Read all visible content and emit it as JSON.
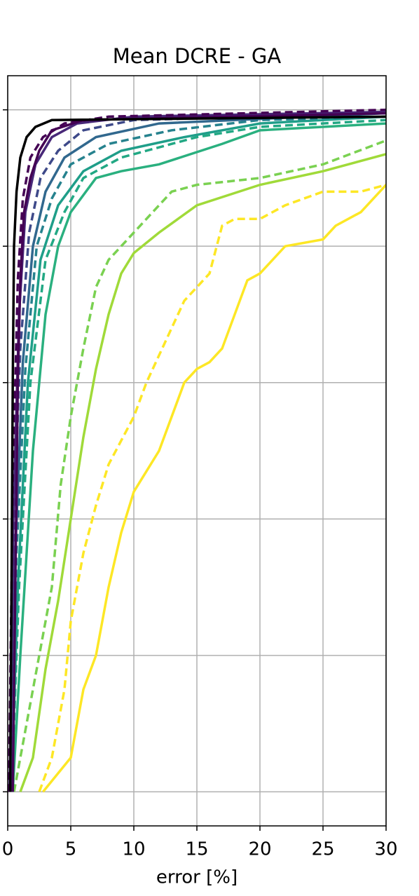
{
  "chart_data": {
    "type": "line",
    "title": "Mean DCRE - GA",
    "xlabel": "error [%]",
    "xlim": [
      0,
      30
    ],
    "xticks": [
      0,
      5,
      10,
      15,
      20,
      25,
      30
    ],
    "ylim": [
      -0.05,
      1.05
    ],
    "yticks": [
      0,
      0.2,
      0.4,
      0.6,
      0.8,
      1.0
    ],
    "grid": true,
    "series": [
      {
        "color": "#fde725",
        "dashed": false,
        "x": [
          2.8,
          5,
          6,
          7,
          8,
          9,
          10,
          11,
          12,
          13,
          14,
          15,
          16,
          17,
          18,
          19,
          20,
          22,
          25,
          26,
          28,
          30
        ],
        "values": [
          0,
          0.05,
          0.15,
          0.2,
          0.3,
          0.38,
          0.44,
          0.47,
          0.5,
          0.55,
          0.6,
          0.62,
          0.63,
          0.65,
          0.7,
          0.75,
          0.76,
          0.8,
          0.81,
          0.83,
          0.85,
          0.89
        ]
      },
      {
        "color": "#fde725",
        "dashed": true,
        "x": [
          2.5,
          3.5,
          4.5,
          5,
          6,
          7,
          8,
          10,
          11,
          12,
          13,
          14,
          16,
          17,
          18,
          20,
          22,
          25,
          28,
          30
        ],
        "values": [
          0,
          0.05,
          0.15,
          0.25,
          0.35,
          0.42,
          0.48,
          0.55,
          0.6,
          0.64,
          0.68,
          0.72,
          0.76,
          0.83,
          0.84,
          0.84,
          0.86,
          0.88,
          0.88,
          0.89
        ]
      },
      {
        "color": "#a0da39",
        "dashed": false,
        "x": [
          1,
          2,
          3,
          4,
          5,
          6,
          7,
          8,
          9,
          10,
          12,
          15,
          20,
          25,
          30
        ],
        "values": [
          0,
          0.05,
          0.18,
          0.28,
          0.4,
          0.52,
          0.62,
          0.7,
          0.76,
          0.79,
          0.82,
          0.86,
          0.89,
          0.91,
          0.935
        ]
      },
      {
        "color": "#7ad151",
        "dashed": true,
        "x": [
          0.5,
          1.5,
          2.5,
          3.5,
          4.2,
          5,
          6,
          7,
          8,
          10,
          13,
          15,
          20,
          25,
          30
        ],
        "values": [
          0,
          0.1,
          0.2,
          0.3,
          0.45,
          0.55,
          0.65,
          0.74,
          0.78,
          0.82,
          0.88,
          0.89,
          0.9,
          0.92,
          0.955
        ]
      },
      {
        "color": "#2ab07f",
        "dashed": false,
        "x": [
          0.4,
          1,
          2,
          3,
          4,
          5,
          7,
          9,
          12,
          17,
          20,
          30
        ],
        "values": [
          0,
          0.2,
          0.5,
          0.7,
          0.8,
          0.85,
          0.9,
          0.91,
          0.92,
          0.95,
          0.97,
          0.98
        ]
      },
      {
        "color": "#22a884",
        "dashed": true,
        "x": [
          0.3,
          0.9,
          1.8,
          3,
          4.5,
          6,
          9,
          15,
          20,
          30
        ],
        "values": [
          0,
          0.3,
          0.6,
          0.78,
          0.85,
          0.9,
          0.93,
          0.96,
          0.975,
          0.985
        ]
      },
      {
        "color": "#1f9e89",
        "dashed": false,
        "x": [
          0.3,
          0.8,
          1.6,
          2.6,
          4,
          6,
          9,
          14,
          20,
          30
        ],
        "values": [
          0,
          0.3,
          0.6,
          0.78,
          0.86,
          0.91,
          0.94,
          0.96,
          0.98,
          0.99
        ]
      },
      {
        "color": "#26828e",
        "dashed": true,
        "x": [
          0.25,
          0.7,
          1.4,
          2.3,
          3.5,
          5,
          8,
          13,
          20,
          30
        ],
        "values": [
          0,
          0.35,
          0.62,
          0.8,
          0.87,
          0.92,
          0.95,
          0.97,
          0.985,
          0.99
        ]
      },
      {
        "color": "#31688e",
        "dashed": false,
        "x": [
          0.2,
          0.6,
          1.2,
          2,
          3,
          4.5,
          7,
          12,
          30
        ],
        "values": [
          0,
          0.35,
          0.63,
          0.8,
          0.88,
          0.93,
          0.96,
          0.98,
          0.995
        ]
      },
      {
        "color": "#3e4989",
        "dashed": true,
        "x": [
          0.2,
          0.5,
          1,
          1.7,
          2.6,
          4,
          6,
          10,
          30
        ],
        "values": [
          0,
          0.4,
          0.65,
          0.82,
          0.9,
          0.94,
          0.97,
          0.985,
          0.995
        ]
      },
      {
        "color": "#482878",
        "dashed": false,
        "x": [
          0.15,
          0.45,
          0.9,
          1.4,
          2.2,
          3.5,
          5.5,
          10,
          30
        ],
        "values": [
          0,
          0.4,
          0.7,
          0.85,
          0.92,
          0.96,
          0.98,
          0.99,
          0.997
        ]
      },
      {
        "color": "#440154",
        "dashed": true,
        "x": [
          0.1,
          0.4,
          0.8,
          1.2,
          1.8,
          2.8,
          4.5,
          8,
          30
        ],
        "values": [
          0,
          0.45,
          0.75,
          0.87,
          0.93,
          0.96,
          0.98,
          0.99,
          1.0
        ]
      },
      {
        "color": "#440154",
        "dashed": false,
        "x": [
          0.4,
          0.6,
          0.8,
          1.0,
          1.3,
          1.8,
          2.5,
          3.5,
          6,
          30
        ],
        "values": [
          0,
          0.3,
          0.6,
          0.75,
          0.85,
          0.9,
          0.94,
          0.97,
          0.985,
          0.995
        ]
      },
      {
        "color": "#000000",
        "dashed": false,
        "x": [
          0.2,
          0.3,
          0.4,
          0.5,
          0.7,
          1.0,
          1.5,
          2.2,
          3.5,
          30
        ],
        "values": [
          0,
          0.3,
          0.6,
          0.8,
          0.88,
          0.93,
          0.96,
          0.975,
          0.985,
          0.99
        ]
      }
    ]
  }
}
